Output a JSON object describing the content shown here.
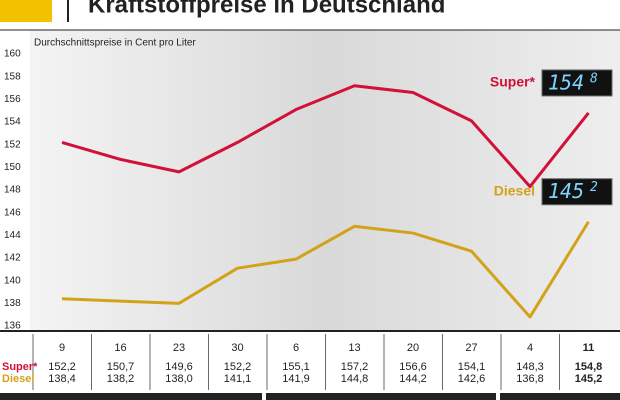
{
  "chart_data": {
    "type": "line",
    "title": "Kraftstoffpreise in Deutschland",
    "subtitle": "Durchschnittspreise in Cent pro Liter",
    "categories": [
      "9",
      "16",
      "23",
      "30",
      "6",
      "13",
      "20",
      "27",
      "4",
      "11"
    ],
    "series": [
      {
        "name": "Super*",
        "color": "#d2103a",
        "values": [
          152.2,
          150.7,
          149.6,
          152.2,
          155.1,
          157.2,
          156.6,
          154.1,
          148.3,
          154.8
        ],
        "value_labels": [
          "152,2",
          "150,7",
          "149,6",
          "152,2",
          "155,1",
          "157,2",
          "156,6",
          "154,1",
          "148,3",
          "154,8"
        ],
        "end_display": [
          "154",
          "8"
        ]
      },
      {
        "name": "Diesel",
        "color": "#d2a21a",
        "values": [
          138.4,
          138.2,
          138.0,
          141.1,
          141.9,
          144.8,
          144.2,
          142.6,
          136.8,
          145.2
        ],
        "value_labels": [
          "138,4",
          "138,2",
          "138,0",
          "141,1",
          "141,9",
          "144,8",
          "144,2",
          "142,6",
          "136,8",
          "145,2"
        ],
        "end_display": [
          "145",
          "2"
        ]
      }
    ],
    "ylim": [
      136,
      160
    ],
    "yticks": [
      136,
      138,
      140,
      142,
      144,
      146,
      148,
      150,
      152,
      154,
      156,
      158,
      160
    ],
    "grid": false
  }
}
